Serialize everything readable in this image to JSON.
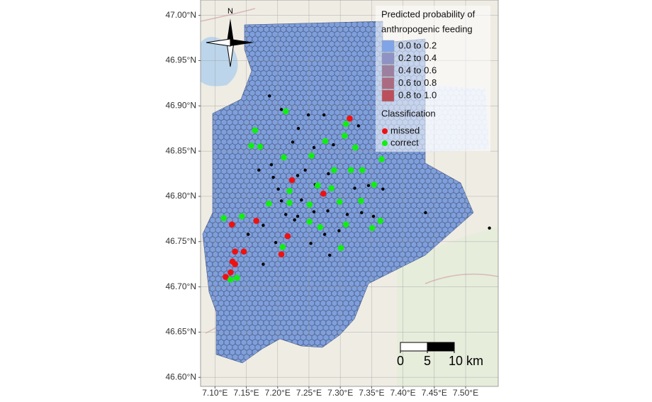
{
  "chart_data": {
    "type": "map",
    "xlim": [
      7.077,
      7.552
    ],
    "ylim": [
      46.59,
      47.017
    ],
    "xticks": [
      {
        "value": 7.1,
        "label": "7.10°E"
      },
      {
        "value": 7.15,
        "label": "7.15°E"
      },
      {
        "value": 7.2,
        "label": "7.20°E"
      },
      {
        "value": 7.25,
        "label": "7.25°E"
      },
      {
        "value": 7.3,
        "label": "7.30°E"
      },
      {
        "value": 7.35,
        "label": "7.35°E"
      },
      {
        "value": 7.4,
        "label": "7.40°E"
      },
      {
        "value": 7.45,
        "label": "7.45°E"
      },
      {
        "value": 7.5,
        "label": "7.50°E"
      }
    ],
    "yticks": [
      {
        "value": 46.6,
        "label": "46.60°N"
      },
      {
        "value": 46.65,
        "label": "46.65°N"
      },
      {
        "value": 46.7,
        "label": "46.70°N"
      },
      {
        "value": 46.75,
        "label": "46.75°N"
      },
      {
        "value": 46.8,
        "label": "46.80°N"
      },
      {
        "value": 46.85,
        "label": "46.85°N"
      },
      {
        "value": 46.9,
        "label": "46.90°N"
      },
      {
        "value": 46.95,
        "label": "46.95°N"
      },
      {
        "value": 47.0,
        "label": "47.00°N"
      }
    ],
    "grid": true,
    "fill_legend": {
      "title": [
        "Predicted probability of",
        "anthropogenic feeding"
      ],
      "entries": [
        {
          "label": "0.0 to 0.2",
          "color": "#7fa5e8"
        },
        {
          "label": "0.2 to 0.4",
          "color": "#8e92c4"
        },
        {
          "label": "0.4 to 0.6",
          "color": "#9d7f9f"
        },
        {
          "label": "0.6 to 0.8",
          "color": "#ac6a80"
        },
        {
          "label": "0.8 to 1.0",
          "color": "#bb4f5c"
        }
      ]
    },
    "legend_title": "Classification",
    "series": [
      {
        "name": "missed",
        "color": "#ee1111",
        "x": [
          7.315,
          7.223,
          7.273,
          7.127,
          7.166,
          7.216,
          7.206,
          7.132,
          7.146,
          7.128,
          7.132,
          7.125,
          7.117
        ],
        "y": [
          46.886,
          46.818,
          46.803,
          46.769,
          46.773,
          46.756,
          46.736,
          46.739,
          46.739,
          46.728,
          46.725,
          46.716,
          46.711
        ]
      },
      {
        "name": "correct",
        "color": "#11ee11",
        "x": [
          7.213,
          7.164,
          7.158,
          7.172,
          7.309,
          7.307,
          7.276,
          7.324,
          7.21,
          7.254,
          7.366,
          7.29,
          7.317,
          7.335,
          7.219,
          7.264,
          7.286,
          7.354,
          7.186,
          7.219,
          7.251,
          7.299,
          7.333,
          7.114,
          7.143,
          7.251,
          7.268,
          7.309,
          7.351,
          7.364,
          7.208,
          7.301,
          7.125,
          7.135
        ],
        "y": [
          46.894,
          46.873,
          46.856,
          46.855,
          46.88,
          46.867,
          46.861,
          46.854,
          46.843,
          46.845,
          46.841,
          46.829,
          46.829,
          46.829,
          46.806,
          46.812,
          46.809,
          46.813,
          46.792,
          46.793,
          46.791,
          46.794,
          46.795,
          46.776,
          46.778,
          46.772,
          46.766,
          46.769,
          46.765,
          46.773,
          46.744,
          46.743,
          46.708,
          46.71
        ]
      },
      {
        "color": "#000000",
        "x": [
          7.187,
          7.206,
          7.249,
          7.274,
          7.329,
          7.233,
          7.224,
          7.289,
          7.258,
          7.19,
          7.17,
          7.244,
          7.281,
          7.232,
          7.193,
          7.26,
          7.323,
          7.368,
          7.345,
          7.238,
          7.206,
          7.28,
          7.334,
          7.353,
          7.177,
          7.227,
          7.275,
          7.298,
          7.197,
          7.253,
          7.177,
          7.283,
          7.232,
          7.436,
          7.538,
          7.258,
          7.153,
          7.311,
          7.213,
          7.201
        ],
        "y": [
          46.911,
          46.896,
          46.89,
          46.89,
          46.878,
          46.875,
          46.86,
          46.857,
          46.854,
          46.835,
          46.829,
          46.829,
          46.825,
          46.823,
          46.821,
          46.813,
          46.809,
          46.808,
          46.812,
          46.796,
          46.795,
          46.784,
          46.782,
          46.778,
          46.768,
          46.774,
          46.758,
          46.762,
          46.749,
          46.748,
          46.725,
          46.735,
          46.778,
          46.782,
          46.765,
          46.783,
          46.758,
          46.78,
          46.78,
          46.808
        ]
      }
    ],
    "north": "N",
    "scale_bar": {
      "ticks": [
        0,
        5,
        {
          "value": 10,
          "label": "10 km"
        }
      ]
    }
  }
}
